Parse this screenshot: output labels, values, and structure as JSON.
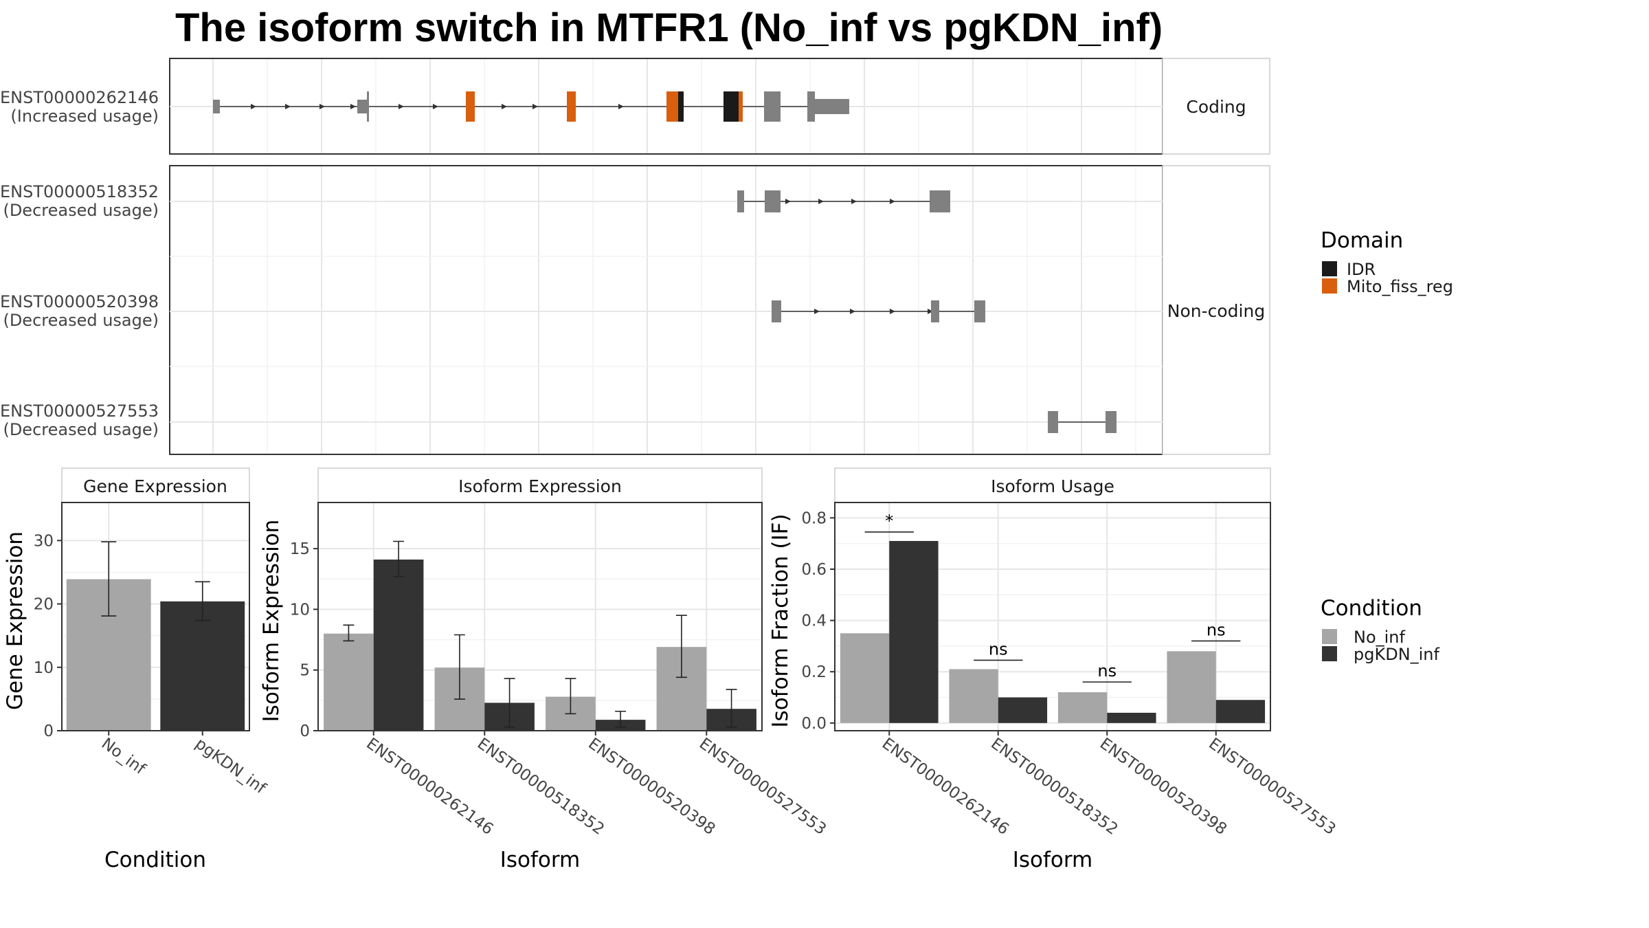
{
  "title": "The isoform switch in MTFR1 (No_inf vs pgKDN_inf)",
  "chart_data": [
    {
      "type": "gene-structure",
      "facets": [
        "Coding",
        "Non-coding"
      ],
      "isoforms": [
        {
          "id": "ENST00000262146",
          "usage": "(Increased usage)",
          "facet": "Coding"
        },
        {
          "id": "ENST00000518352",
          "usage": "(Decreased usage)",
          "facet": "Non-coding"
        },
        {
          "id": "ENST00000520398",
          "usage": "(Decreased usage)",
          "facet": "Non-coding"
        },
        {
          "id": "ENST00000527553",
          "usage": "(Decreased usage)",
          "facet": "Non-coding"
        }
      ],
      "legend": {
        "title": "Domain",
        "items": [
          {
            "name": "IDR",
            "color": "#1a1a1a"
          },
          {
            "name": "Mito_fiss_reg",
            "color": "#d95f0e"
          }
        ]
      }
    },
    {
      "type": "bar",
      "strip": "Gene Expression",
      "xlabel": "Condition",
      "ylabel": "Gene Expression",
      "ylim": [
        0,
        36
      ],
      "yticks": [
        0,
        10,
        20,
        30
      ],
      "categories": [
        "No_inf",
        "pgKDN_inf"
      ],
      "values": [
        23.9,
        20.4
      ],
      "err_low": [
        18.1,
        17.4
      ],
      "err_high": [
        29.8,
        23.5
      ]
    },
    {
      "type": "bar",
      "strip": "Isoform Expression",
      "xlabel": "Isoform",
      "ylabel": "Isoform Expression",
      "ylim": [
        0,
        18.8
      ],
      "yticks": [
        0,
        5,
        10,
        15
      ],
      "categories": [
        "ENST00000262146",
        "ENST00000518352",
        "ENST00000520398",
        "ENST00000527553"
      ],
      "series": [
        {
          "name": "No_inf",
          "values": [
            8.0,
            5.2,
            2.8,
            6.9
          ],
          "err_low": [
            7.4,
            2.6,
            1.4,
            4.4
          ],
          "err_high": [
            8.7,
            7.9,
            4.3,
            9.5
          ]
        },
        {
          "name": "pgKDN_inf",
          "values": [
            14.1,
            2.3,
            0.9,
            1.8
          ],
          "err_low": [
            12.7,
            0.3,
            0.3,
            0.3
          ],
          "err_high": [
            15.6,
            4.3,
            1.6,
            3.4
          ]
        }
      ]
    },
    {
      "type": "bar",
      "strip": "Isoform Usage",
      "xlabel": "Isoform",
      "ylabel": "Isoform Fraction (IF)",
      "ylim": [
        -0.03,
        0.86
      ],
      "yticks": [
        0.0,
        0.2,
        0.4,
        0.6,
        0.8
      ],
      "ytick_labels": [
        "0.0",
        "0.2",
        "0.4",
        "0.6",
        "0.8"
      ],
      "categories": [
        "ENST00000262146",
        "ENST00000518352",
        "ENST00000520398",
        "ENST00000527553"
      ],
      "series": [
        {
          "name": "No_inf",
          "values": [
            0.35,
            0.21,
            0.12,
            0.28
          ]
        },
        {
          "name": "pgKDN_inf",
          "values": [
            0.71,
            0.1,
            0.04,
            0.09
          ]
        }
      ],
      "significance": [
        {
          "label": "*",
          "y": 0.745
        },
        {
          "label": "ns",
          "y": 0.245
        },
        {
          "label": "ns",
          "y": 0.16
        },
        {
          "label": "ns",
          "y": 0.32
        }
      ]
    }
  ],
  "condition_legend": {
    "title": "Condition",
    "items": [
      {
        "name": "No_inf",
        "color": "#a6a6a6"
      },
      {
        "name": "pgKDN_inf",
        "color": "#333333"
      }
    ]
  }
}
